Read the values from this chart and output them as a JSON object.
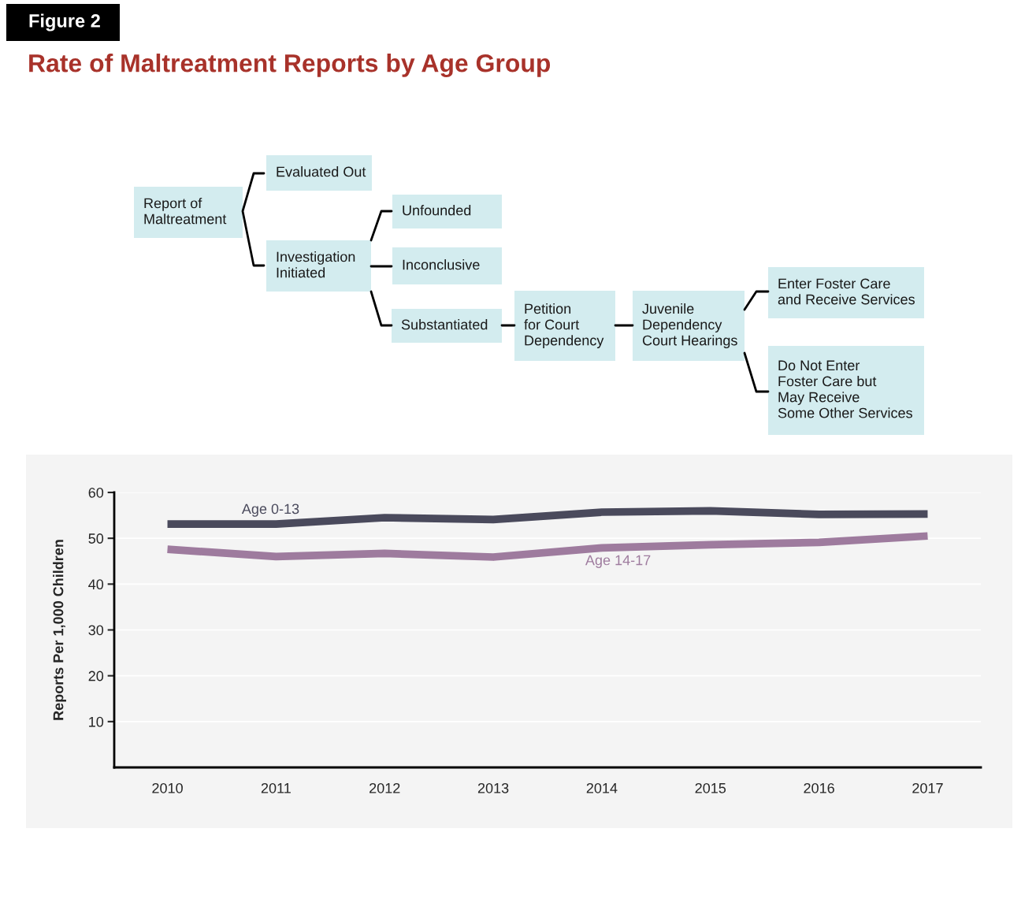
{
  "chart_data": {
    "type": "line",
    "title": "Rate of Maltreatment Reports by Age Group",
    "ylabel": "Reports Per 1,000 Children",
    "categories": [
      "2010",
      "2011",
      "2012",
      "2013",
      "2014",
      "2015",
      "2016",
      "2017"
    ],
    "series": [
      {
        "name": "Age 0-13",
        "color": "#4a4a5c",
        "values": [
          53.1,
          53.1,
          54.5,
          54.1,
          55.7,
          56.0,
          55.2,
          55.3
        ]
      },
      {
        "name": "Age 14-17",
        "color": "#9e7b9e",
        "values": [
          47.6,
          46.0,
          46.7,
          45.9,
          47.9,
          48.6,
          49.1,
          50.5
        ]
      }
    ],
    "ylim": [
      0,
      60
    ],
    "yticks": [
      10,
      20,
      30,
      40,
      50,
      60
    ],
    "grid": "y",
    "legend": false,
    "marker": "none",
    "line_style": "solid",
    "annotations": [
      "Figure 2",
      "Report of\nMaltreatment",
      "Evaluated Out",
      "Investigation\nInitiated",
      "Unfounded",
      "Inconclusive",
      "Substantiated",
      "Petition\nfor Court\nDependency",
      "Juvenile\nDependency\nCourt Hearings",
      "Enter Foster Care\nand Receive Services",
      "Do Not Enter\nFoster Care but\nMay Receive\nSome Other Services"
    ]
  }
}
